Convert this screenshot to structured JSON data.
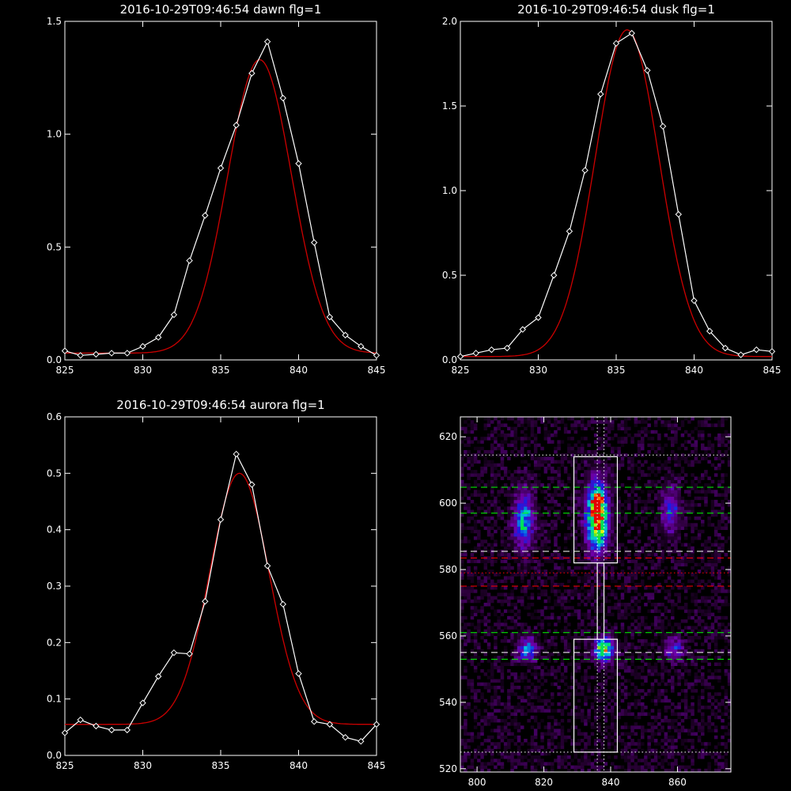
{
  "chart_data": [
    {
      "type": "line",
      "title": "2016-10-29T09:46:54 dawn flg=1",
      "xlim": [
        825,
        845
      ],
      "ylim": [
        0,
        1.5
      ],
      "xticks": [
        "825",
        "830",
        "835",
        "840",
        "845"
      ],
      "yticks": [
        "0.0",
        "0.5",
        "1.0",
        "1.5"
      ],
      "xtick_values": [
        825,
        830,
        835,
        840,
        845
      ],
      "ytick_values": [
        0,
        0.5,
        1.0,
        1.5
      ],
      "series": [
        {
          "color": "#ffffff",
          "marker": "diamond",
          "x": [
            825,
            826,
            827,
            828,
            829,
            830,
            831,
            832,
            833,
            834,
            835,
            836,
            837,
            838,
            839,
            840,
            841,
            842,
            843,
            844,
            845
          ],
          "y": [
            0.04,
            0.02,
            0.025,
            0.03,
            0.03,
            0.06,
            0.1,
            0.2,
            0.44,
            0.64,
            0.85,
            1.04,
            1.27,
            1.41,
            1.16,
            0.87,
            0.52,
            0.19,
            0.11,
            0.06,
            0.02
          ]
        },
        {
          "color": "#cc0000",
          "fit": {
            "a": 1.3,
            "mu": 837.5,
            "sigma": 2.05,
            "c": 0.03
          }
        }
      ]
    },
    {
      "type": "line",
      "title": "2016-10-29T09:46:54 dusk flg=1",
      "xlim": [
        825,
        845
      ],
      "ylim": [
        0,
        2.0
      ],
      "xticks": [
        "825",
        "830",
        "835",
        "840",
        "845"
      ],
      "yticks": [
        "0.0",
        "0.5",
        "1.0",
        "1.5",
        "2.0"
      ],
      "xtick_values": [
        825,
        830,
        835,
        840,
        845
      ],
      "ytick_values": [
        0,
        0.5,
        1.0,
        1.5,
        2.0
      ],
      "series": [
        {
          "color": "#ffffff",
          "marker": "diamond",
          "x": [
            825,
            826,
            827,
            828,
            829,
            830,
            831,
            832,
            833,
            834,
            835,
            836,
            837,
            838,
            839,
            840,
            841,
            842,
            843,
            844,
            845
          ],
          "y": [
            0.02,
            0.04,
            0.06,
            0.07,
            0.18,
            0.25,
            0.5,
            0.76,
            1.12,
            1.57,
            1.87,
            1.93,
            1.71,
            1.38,
            0.86,
            0.35,
            0.17,
            0.07,
            0.03,
            0.06,
            0.05
          ]
        },
        {
          "color": "#cc0000",
          "fit": {
            "a": 1.93,
            "mu": 835.7,
            "sigma": 2.05,
            "c": 0.02
          }
        }
      ]
    },
    {
      "type": "line",
      "title": "2016-10-29T09:46:54 aurora flg=1",
      "xlim": [
        825,
        845
      ],
      "ylim": [
        0,
        0.6
      ],
      "xticks": [
        "825",
        "830",
        "835",
        "840",
        "845"
      ],
      "yticks": [
        "0.0",
        "0.1",
        "0.2",
        "0.3",
        "0.4",
        "0.5",
        "0.6"
      ],
      "xtick_values": [
        825,
        830,
        835,
        840,
        845
      ],
      "ytick_values": [
        0,
        0.1,
        0.2,
        0.3,
        0.4,
        0.5,
        0.6
      ],
      "series": [
        {
          "color": "#ffffff",
          "marker": "diamond",
          "x": [
            825,
            826,
            827,
            828,
            829,
            830,
            831,
            832,
            833,
            834,
            835,
            836,
            837,
            838,
            839,
            840,
            841,
            842,
            843,
            844,
            845
          ],
          "y": [
            0.04,
            0.063,
            0.052,
            0.045,
            0.045,
            0.093,
            0.14,
            0.182,
            0.18,
            0.273,
            0.418,
            0.534,
            0.48,
            0.336,
            0.268,
            0.145,
            0.06,
            0.055,
            0.032,
            0.025,
            0.055
          ]
        },
        {
          "color": "#cc0000",
          "fit": {
            "a": 0.445,
            "mu": 836.2,
            "sigma": 1.9,
            "c": 0.055
          }
        }
      ]
    },
    {
      "type": "heatmap",
      "title": "",
      "xlim": [
        795,
        876
      ],
      "ylim": [
        519,
        626
      ],
      "xticks": [
        "800",
        "820",
        "840",
        "860"
      ],
      "yticks": [
        "520",
        "540",
        "560",
        "580",
        "600",
        "620"
      ],
      "xtick_values": [
        800,
        820,
        840,
        860
      ],
      "ytick_values": [
        520,
        540,
        560,
        580,
        600,
        620
      ],
      "blobs": [
        {
          "x": 836,
          "y": 596,
          "sx": 2.2,
          "sy": 7,
          "amp": 1.0
        },
        {
          "x": 836,
          "y": 600,
          "sx": 1.5,
          "sy": 2,
          "amp": 0.3
        },
        {
          "x": 814,
          "y": 595,
          "sx": 2.0,
          "sy": 6,
          "amp": 0.55
        },
        {
          "x": 858,
          "y": 598,
          "sx": 1.8,
          "sy": 5,
          "amp": 0.35
        },
        {
          "x": 838,
          "y": 556,
          "sx": 2.0,
          "sy": 2.5,
          "amp": 0.75
        },
        {
          "x": 815,
          "y": 556,
          "sx": 2.0,
          "sy": 2.5,
          "amp": 0.45
        },
        {
          "x": 859,
          "y": 556,
          "sx": 2.0,
          "sy": 2.5,
          "amp": 0.3
        }
      ],
      "boxes": [
        {
          "x": [
            829,
            842
          ],
          "y": [
            582,
            614
          ],
          "color": "#ffffff"
        },
        {
          "x": [
            829,
            842
          ],
          "y": [
            525,
            559
          ],
          "color": "#ffffff"
        },
        {
          "x": [
            836,
            838
          ],
          "y": [
            559,
            582
          ],
          "color": "#ffffff"
        }
      ],
      "hlines": [
        {
          "y": 614.5,
          "color": "#ffffff",
          "style": "dotted"
        },
        {
          "y": 604.8,
          "color": "#00ff00",
          "style": "dashed"
        },
        {
          "y": 597,
          "color": "#00ff00",
          "style": "dashed"
        },
        {
          "y": 585.5,
          "color": "#ffffff",
          "style": "dashed"
        },
        {
          "y": 583.5,
          "color": "#ff0000",
          "style": "dashed"
        },
        {
          "y": 579,
          "color": "#ff0000",
          "style": "dotted"
        },
        {
          "y": 575,
          "color": "#ff0000",
          "style": "dashed"
        },
        {
          "y": 561,
          "color": "#00ff00",
          "style": "dashed"
        },
        {
          "y": 555,
          "color": "#ffffff",
          "style": "dashed"
        },
        {
          "y": 553,
          "color": "#00ff00",
          "style": "dashed"
        },
        {
          "y": 525,
          "color": "#ffffff",
          "style": "dotted"
        }
      ],
      "vlines": [
        {
          "x": 836,
          "color": "#ffffff",
          "style": "dotted"
        },
        {
          "x": 838,
          "color": "#ffffff",
          "style": "dotted"
        }
      ]
    }
  ]
}
